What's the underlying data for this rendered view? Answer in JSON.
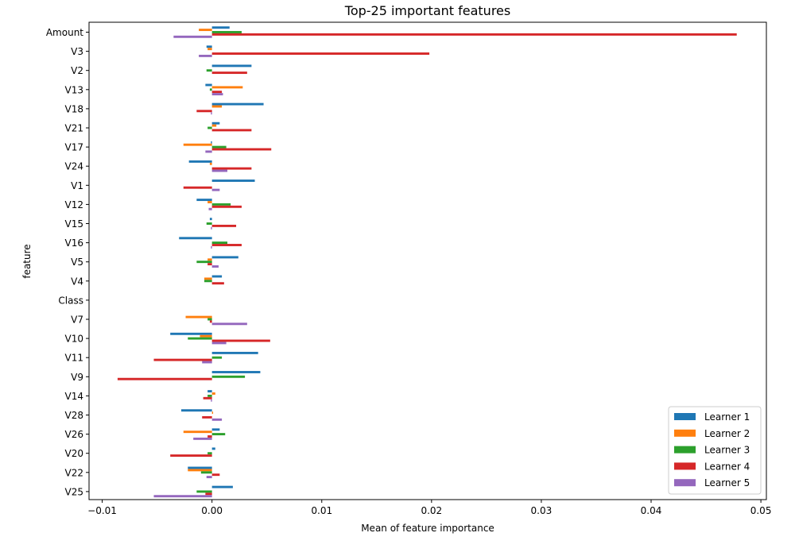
{
  "chart_data": {
    "type": "bar",
    "orientation": "horizontal",
    "title": "Top-25 important features",
    "xlabel": "Mean of feature importance",
    "ylabel": "feature",
    "xlim": [
      -0.0112,
      0.0505
    ],
    "xticks": [
      -0.01,
      0.0,
      0.01,
      0.02,
      0.03,
      0.04,
      0.05
    ],
    "xtick_labels": [
      "−0.01",
      "0.00",
      "0.01",
      "0.02",
      "0.03",
      "0.04",
      "0.05"
    ],
    "grid": false,
    "legend_position": "lower-right",
    "categories": [
      "Amount",
      "V3",
      "V2",
      "V13",
      "V18",
      "V21",
      "V17",
      "V24",
      "V1",
      "V12",
      "V15",
      "V16",
      "V5",
      "V4",
      "Class",
      "V7",
      "V10",
      "V11",
      "V9",
      "V14",
      "V28",
      "V26",
      "V20",
      "V22",
      "V25"
    ],
    "series": [
      {
        "name": "Learner 1",
        "color": "#1f77b4",
        "values": [
          0.0016,
          -0.0005,
          0.0036,
          -0.0006,
          0.0047,
          0.0007,
          -0.0001,
          -0.0021,
          0.0039,
          -0.0014,
          -0.0002,
          -0.003,
          0.0024,
          0.0009,
          0.0,
          0.0,
          -0.0038,
          0.0042,
          0.0044,
          -0.0004,
          -0.0028,
          0.0007,
          0.0003,
          -0.0022,
          0.0019
        ]
      },
      {
        "name": "Learner 2",
        "color": "#ff7f0e",
        "values": [
          -0.0012,
          -0.0004,
          0.0,
          0.0028,
          0.0009,
          0.0004,
          -0.0026,
          -0.0002,
          0.0,
          -0.0004,
          0.0,
          0.0,
          -0.0004,
          -0.0007,
          0.0,
          -0.0024,
          -0.0011,
          0.0,
          0.0,
          0.0003,
          0.0001,
          -0.0026,
          0.0,
          -0.0022,
          0.0
        ]
      },
      {
        "name": "Learner 3",
        "color": "#2ca02c",
        "values": [
          0.0027,
          0.0,
          -0.0005,
          -0.0002,
          0.0,
          -0.0004,
          0.0013,
          0.0,
          0.0,
          0.0017,
          -0.0005,
          0.0014,
          -0.0014,
          -0.0007,
          0.0,
          -0.0004,
          -0.0022,
          0.0009,
          0.003,
          -0.0004,
          0.0,
          0.0012,
          -0.0004,
          -0.001,
          -0.0014
        ]
      },
      {
        "name": "Learner 4",
        "color": "#d62728",
        "values": [
          0.0478,
          0.0198,
          0.0032,
          0.0009,
          -0.0014,
          0.0036,
          0.0054,
          0.0036,
          -0.0026,
          0.0027,
          0.0022,
          0.0027,
          -0.0004,
          0.0011,
          0.0,
          -0.0002,
          0.0053,
          -0.0053,
          -0.0086,
          -0.0008,
          -0.0009,
          -0.0004,
          -0.0038,
          0.0007,
          -0.0006
        ]
      },
      {
        "name": "Learner 5",
        "color": "#9467bd",
        "values": [
          -0.0035,
          -0.0012,
          0.0,
          0.001,
          -0.0001,
          0.0,
          -0.0006,
          0.0014,
          0.0007,
          -0.0003,
          -0.0001,
          -0.0001,
          0.0006,
          0.0,
          0.0,
          0.0032,
          0.0013,
          -0.0009,
          0.0,
          -0.0001,
          0.0009,
          -0.0017,
          0.0,
          -0.0005,
          -0.0053
        ]
      }
    ]
  }
}
